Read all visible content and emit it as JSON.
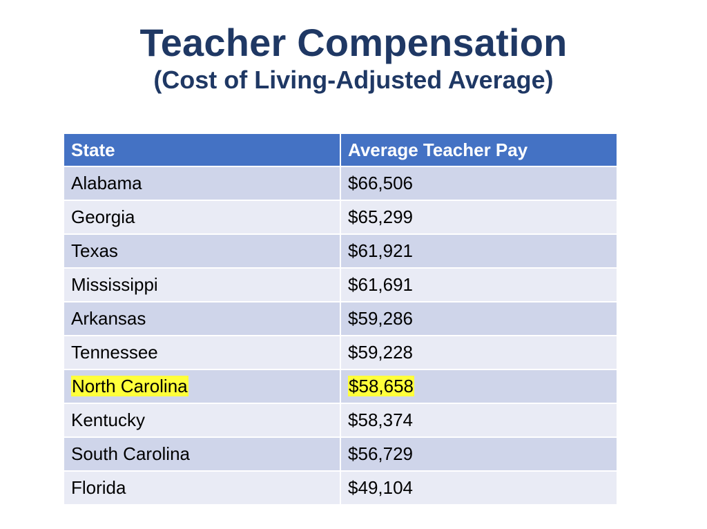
{
  "slide": {
    "title": "Teacher Compensation",
    "subtitle": "(Cost of Living-Adjusted Average)"
  },
  "table": {
    "headers": [
      "State",
      "Average Teacher Pay"
    ],
    "rows": [
      {
        "state": "Alabama",
        "pay": "$66,506",
        "highlighted": false
      },
      {
        "state": "Georgia",
        "pay": "$65,299",
        "highlighted": false
      },
      {
        "state": "Texas",
        "pay": "$61,921",
        "highlighted": false
      },
      {
        "state": "Mississippi",
        "pay": "$61,691",
        "highlighted": false
      },
      {
        "state": "Arkansas",
        "pay": "$59,286",
        "highlighted": false
      },
      {
        "state": "Tennessee",
        "pay": "$59,228",
        "highlighted": false
      },
      {
        "state": "North Carolina",
        "pay": "$58,658",
        "highlighted": true
      },
      {
        "state": "Kentucky",
        "pay": "$58,374",
        "highlighted": false
      },
      {
        "state": "South Carolina",
        "pay": "$56,729",
        "highlighted": false
      },
      {
        "state": "Florida",
        "pay": "$49,104",
        "highlighted": false
      }
    ]
  },
  "colors": {
    "title": "#1f3864",
    "header_bg": "#4472c4",
    "row_dark": "#cfd5ea",
    "row_light": "#e9ebf5",
    "highlight": "#ffff3b"
  }
}
